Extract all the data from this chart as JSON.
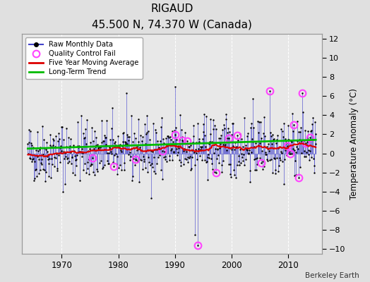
{
  "title": "RIGAUD",
  "subtitle": "45.500 N, 74.370 W (Canada)",
  "ylabel": "Temperature Anomaly (°C)",
  "attribution": "Berkeley Earth",
  "xlim": [
    1963,
    2016
  ],
  "ylim": [
    -10.5,
    12.5
  ],
  "yticks": [
    -10,
    -8,
    -6,
    -4,
    -2,
    0,
    2,
    4,
    6,
    8,
    10,
    12
  ],
  "xticks": [
    1970,
    1980,
    1990,
    2000,
    2010
  ],
  "background_color": "#e0e0e0",
  "plot_bg_color": "#e8e8e8",
  "grid_color": "#ffffff",
  "raw_line_color": "#4444cc",
  "raw_dot_color": "#000000",
  "qc_fail_color": "#ff44ff",
  "moving_avg_color": "#dd0000",
  "trend_color": "#00bb00",
  "long_term_slope": 0.018,
  "seed": 42
}
